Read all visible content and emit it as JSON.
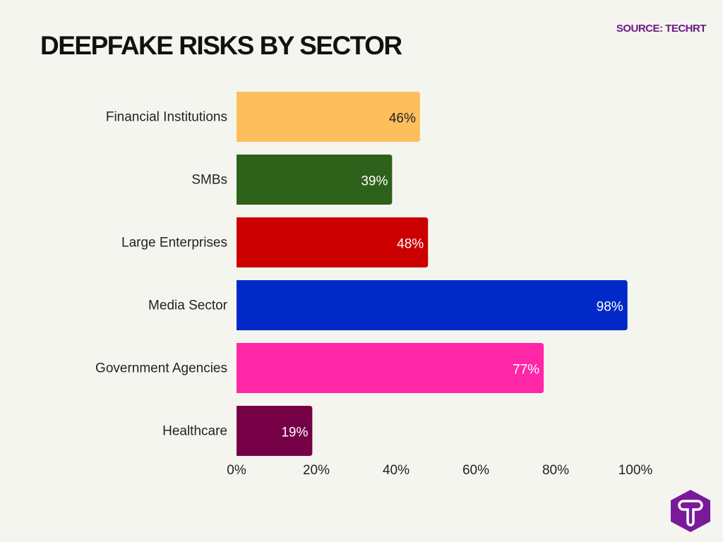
{
  "chart_data": {
    "type": "bar",
    "orientation": "horizontal",
    "title": "DEEPFAKE RISKS BY SECTOR",
    "source": "SOURCE: TECHRT",
    "categories": [
      "Financial Institutions",
      "SMBs",
      "Large Enterprises",
      "Media Sector",
      "Government Agencies",
      "Healthcare"
    ],
    "values": [
      46,
      39,
      48,
      98,
      77,
      19
    ],
    "data_labels": [
      "46%",
      "39%",
      "48%",
      "98%",
      "77%",
      "19%"
    ],
    "colors": [
      "#ffbe5c",
      "#2e6119",
      "#cc0000",
      "#0029c7",
      "#ff26a8",
      "#760046"
    ],
    "label_colors": [
      "#222222",
      "#ffffff",
      "#ffffff",
      "#ffffff",
      "#ffffff",
      "#ffffff"
    ],
    "xlim": [
      0,
      100
    ],
    "x_ticks": [
      "0%",
      "20%",
      "40%",
      "60%",
      "80%",
      "100%"
    ],
    "x_tick_values": [
      0,
      20,
      40,
      60,
      80,
      100
    ],
    "grid": false,
    "xlabel": "",
    "ylabel": ""
  },
  "logo": {
    "letter": "T",
    "color": "#7a1a9a"
  }
}
